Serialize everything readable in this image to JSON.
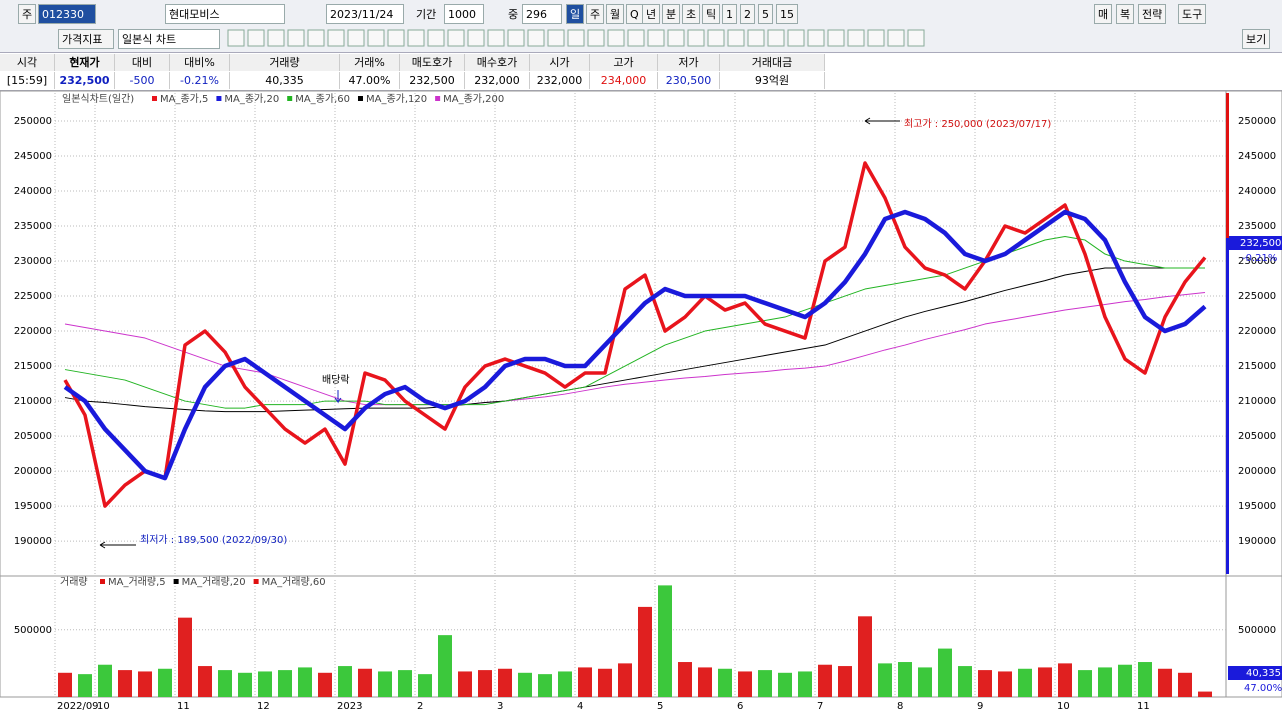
{
  "toolbar": {
    "row1": [
      "주",
      "012330",
      "현대모비스",
      "2023/11/24",
      "기간",
      "1000",
      "중",
      "296",
      "일",
      "주",
      "월",
      "Q",
      "년",
      "분",
      "초",
      "틱",
      "1",
      "2",
      "5",
      "15",
      "매",
      "복",
      "전략",
      "도구"
    ],
    "row2": [
      "가격지표",
      "일본식 차트",
      "보기"
    ]
  },
  "quote": {
    "headers": [
      "시각",
      "현재가",
      "대비",
      "대비%",
      "거래량",
      "거래%",
      "매도호가",
      "매수호가",
      "시가",
      "고가",
      "저가",
      "거래대금"
    ],
    "values": [
      "[15:59]",
      "232,500",
      "-500",
      "-0.21%",
      "40,335",
      "47.00%",
      "232,500",
      "232,000",
      "232,000",
      "234,000",
      "230,500",
      "93억원"
    ]
  },
  "chart_data": [
    {
      "type": "line",
      "title": "일본식차트(일간)",
      "series": [
        {
          "name": "MA_종가,5",
          "color": "#e8141c",
          "values": [
            213000,
            208000,
            195000,
            198000,
            200000,
            199000,
            218000,
            220000,
            217000,
            212000,
            209000,
            206000,
            204000,
            206000,
            201000,
            214000,
            213000,
            210000,
            208000,
            206000,
            212000,
            215000,
            216000,
            215000,
            214000,
            212000,
            214000,
            214000,
            226000,
            228000,
            220000,
            222000,
            225000,
            223000,
            224000,
            221000,
            220000,
            219000,
            230000,
            232000,
            244000,
            239000,
            232000,
            229000,
            228000,
            226000,
            230000,
            235000,
            234000,
            236000,
            238000,
            231000,
            222000,
            216000,
            214000,
            222000,
            227000,
            230500
          ]
        },
        {
          "name": "MA_종가,20",
          "color": "#1a1adb",
          "values": [
            212000,
            210000,
            206000,
            203000,
            200000,
            199000,
            206000,
            212000,
            215000,
            216000,
            214000,
            212000,
            210000,
            208000,
            206000,
            209000,
            211000,
            212000,
            210000,
            209000,
            210000,
            212000,
            215000,
            216000,
            216000,
            215000,
            215000,
            218000,
            221000,
            224000,
            226000,
            225000,
            225000,
            225000,
            225000,
            224000,
            223000,
            222000,
            224000,
            227000,
            231000,
            236000,
            237000,
            236000,
            234000,
            231000,
            230000,
            231000,
            233000,
            235000,
            237000,
            236000,
            233000,
            227000,
            222000,
            220000,
            221000,
            223500
          ]
        },
        {
          "name": "MA_종가,60",
          "color": "#22b422",
          "values": [
            214500,
            214000,
            213500,
            213000,
            212000,
            211000,
            210000,
            209500,
            209000,
            209000,
            209500,
            209500,
            209500,
            210000,
            210000,
            210000,
            209500,
            209500,
            209500,
            209500,
            209500,
            209500,
            210000,
            210500,
            211000,
            211500,
            212000,
            213500,
            215000,
            216500,
            218000,
            219000,
            220000,
            220500,
            221000,
            221500,
            222000,
            223000,
            224000,
            225000,
            226000,
            226500,
            227000,
            227500,
            228000,
            229000,
            230000,
            231000,
            232000,
            233000,
            233500,
            233000,
            231000,
            230000,
            229500,
            229000,
            229000,
            229000
          ]
        },
        {
          "name": "MA_종가,120",
          "color": "#000000",
          "values": [
            210500,
            210000,
            209800,
            209500,
            209200,
            209000,
            208800,
            208600,
            208500,
            208500,
            208500,
            208600,
            208700,
            208800,
            208900,
            209000,
            209000,
            209000,
            209000,
            209200,
            209500,
            209800,
            210000,
            210500,
            211000,
            211500,
            212000,
            212500,
            213000,
            213500,
            214000,
            214500,
            215000,
            215500,
            216000,
            216500,
            217000,
            217500,
            218000,
            219000,
            220000,
            221000,
            222000,
            222800,
            223500,
            224200,
            225000,
            225800,
            226500,
            227200,
            228000,
            228500,
            229000,
            229000,
            229000,
            229000,
            229000,
            229000
          ]
        },
        {
          "name": "MA_종가,200",
          "color": "#cc33cc",
          "values": [
            221000,
            220500,
            220000,
            219500,
            219000,
            218000,
            217000,
            216000,
            215000,
            214500,
            214000,
            213000,
            212000,
            211000,
            210000,
            209500,
            209500,
            209500,
            209500,
            209500,
            209500,
            209800,
            210000,
            210300,
            210600,
            211000,
            211500,
            212000,
            212400,
            212700,
            213000,
            213300,
            213500,
            213800,
            214000,
            214200,
            214500,
            214700,
            215000,
            215700,
            216500,
            217300,
            218000,
            218800,
            219500,
            220200,
            221000,
            221500,
            222000,
            222500,
            223000,
            223400,
            223800,
            224200,
            224500,
            224900,
            225200,
            225500
          ]
        }
      ],
      "ylim": [
        185300,
        254000
      ],
      "yticks": [
        190000,
        195000,
        200000,
        205000,
        210000,
        215000,
        220000,
        225000,
        230000,
        235000,
        240000,
        245000,
        250000
      ],
      "grid": true,
      "annotations": [
        "최고가 : 250,000 (2023/07/17)",
        "최저가 : 189,500 (2022/09/30)",
        "배당락"
      ],
      "last_label": "232,500",
      "change_label": "-0.21%"
    },
    {
      "type": "bar",
      "title": "거래량",
      "categories": [
        "2022/09",
        null,
        "10",
        null,
        null,
        null,
        "11",
        null,
        null,
        null,
        "12",
        null,
        null,
        null,
        "2023",
        null,
        null,
        null,
        "2",
        null,
        null,
        null,
        "3",
        null,
        null,
        null,
        "4",
        null,
        null,
        null,
        "5",
        null,
        null,
        null,
        "6",
        null,
        null,
        null,
        "7",
        null,
        null,
        null,
        "8",
        null,
        null,
        null,
        "9",
        null,
        null,
        null,
        "10",
        null,
        null,
        null,
        "11",
        null,
        null,
        null
      ],
      "values": [
        180000,
        170000,
        240000,
        200000,
        190000,
        210000,
        590000,
        230000,
        200000,
        180000,
        190000,
        200000,
        220000,
        180000,
        230000,
        210000,
        190000,
        200000,
        170000,
        460000,
        190000,
        200000,
        210000,
        180000,
        170000,
        190000,
        220000,
        210000,
        250000,
        670000,
        830000,
        260000,
        220000,
        210000,
        190000,
        200000,
        180000,
        190000,
        240000,
        230000,
        600000,
        250000,
        260000,
        220000,
        360000,
        230000,
        200000,
        190000,
        210000,
        220000,
        250000,
        200000,
        220000,
        240000,
        260000,
        210000,
        180000,
        40335
      ],
      "up_color": "#e02020",
      "down_color": "#3cc83c",
      "legend": [
        "MA_거래량,5",
        "MA_거래량,20",
        "MA_거래량,60"
      ],
      "ylim": [
        0,
        870000
      ],
      "yticks": [
        500000
      ],
      "grid": true,
      "last_label": "40,335",
      "ratio_label": "47.00%"
    }
  ]
}
